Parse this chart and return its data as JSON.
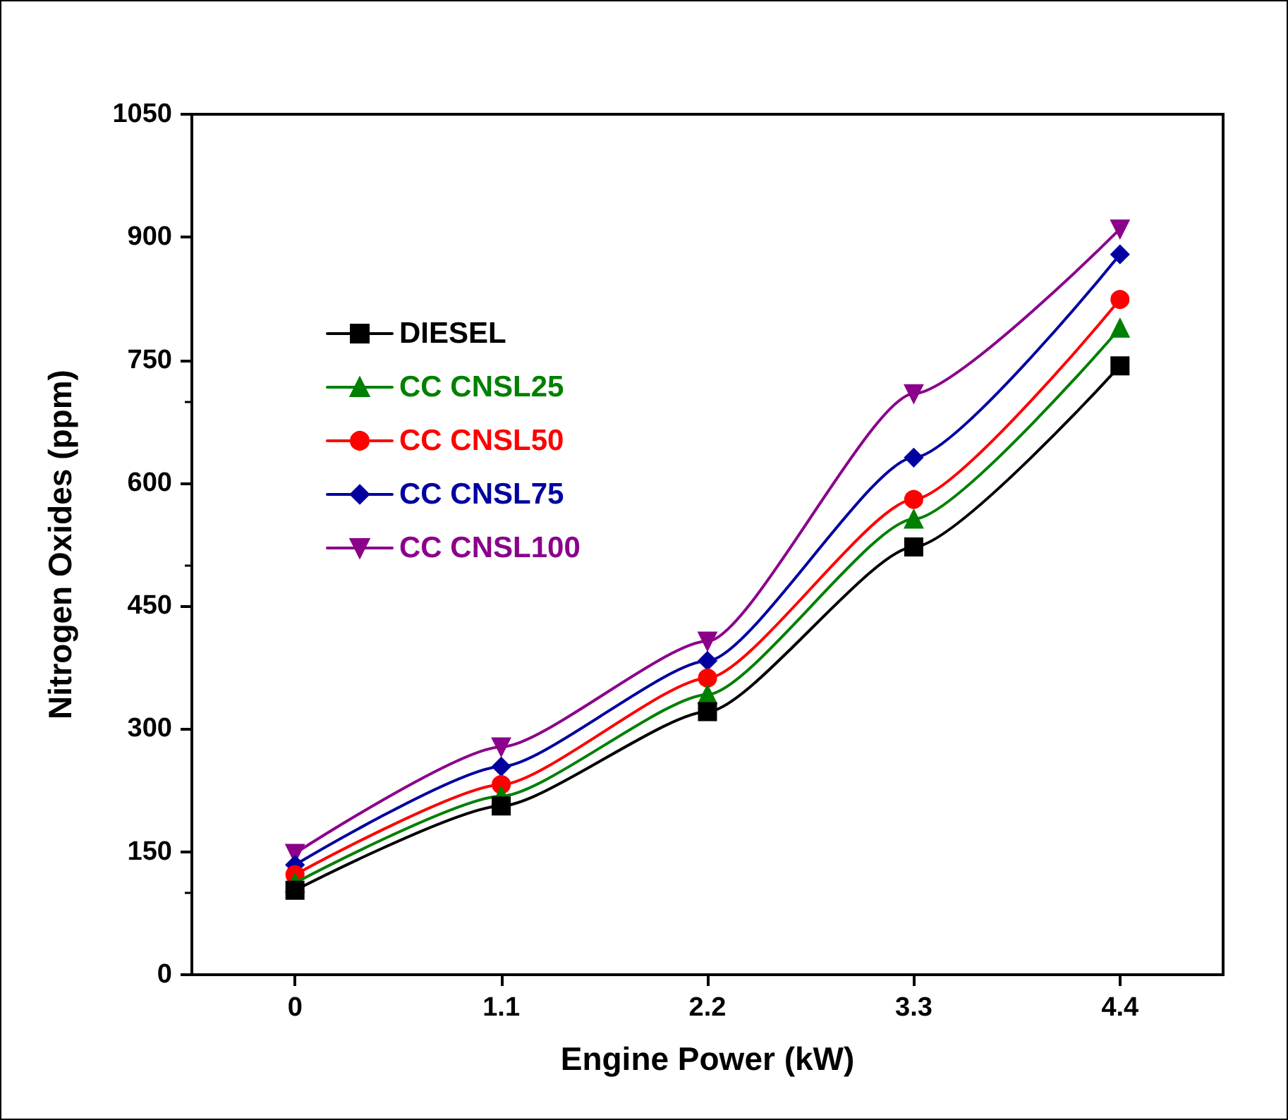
{
  "chart_data": {
    "type": "line",
    "xlabel": "Engine Power (kW)",
    "ylabel": "Nitrogen Oxides (ppm)",
    "x": [
      0,
      1.1,
      2.2,
      3.3,
      4.4
    ],
    "xlim": [
      -0.55,
      4.95
    ],
    "xticks": [
      0,
      1.1,
      2.2,
      3.3,
      4.4
    ],
    "ylim": [
      0,
      1050
    ],
    "yticks": [
      0,
      150,
      300,
      450,
      600,
      750,
      900,
      1050
    ],
    "grid": false,
    "legend": "top left",
    "line_style": "solid",
    "series": [
      {
        "name": "DIESEL",
        "color": "#000000",
        "marker": "square",
        "values": [
          103,
          206,
          321,
          522,
          743
        ]
      },
      {
        "name": "CC CNSL25",
        "color": "#008000",
        "marker": "triangle",
        "values": [
          112,
          218,
          342,
          556,
          789
        ]
      },
      {
        "name": "CC CNSL50",
        "color": "#ff0000",
        "marker": "circle",
        "values": [
          122,
          232,
          362,
          580,
          824
        ]
      },
      {
        "name": "CC CNSL75",
        "color": "#0000a0",
        "marker": "diamond",
        "values": [
          134,
          254,
          383,
          631,
          879
        ]
      },
      {
        "name": "CC CNSL100",
        "color": "#8b008b",
        "marker": "triangle-down",
        "values": [
          148,
          278,
          407,
          709,
          910
        ]
      }
    ]
  }
}
